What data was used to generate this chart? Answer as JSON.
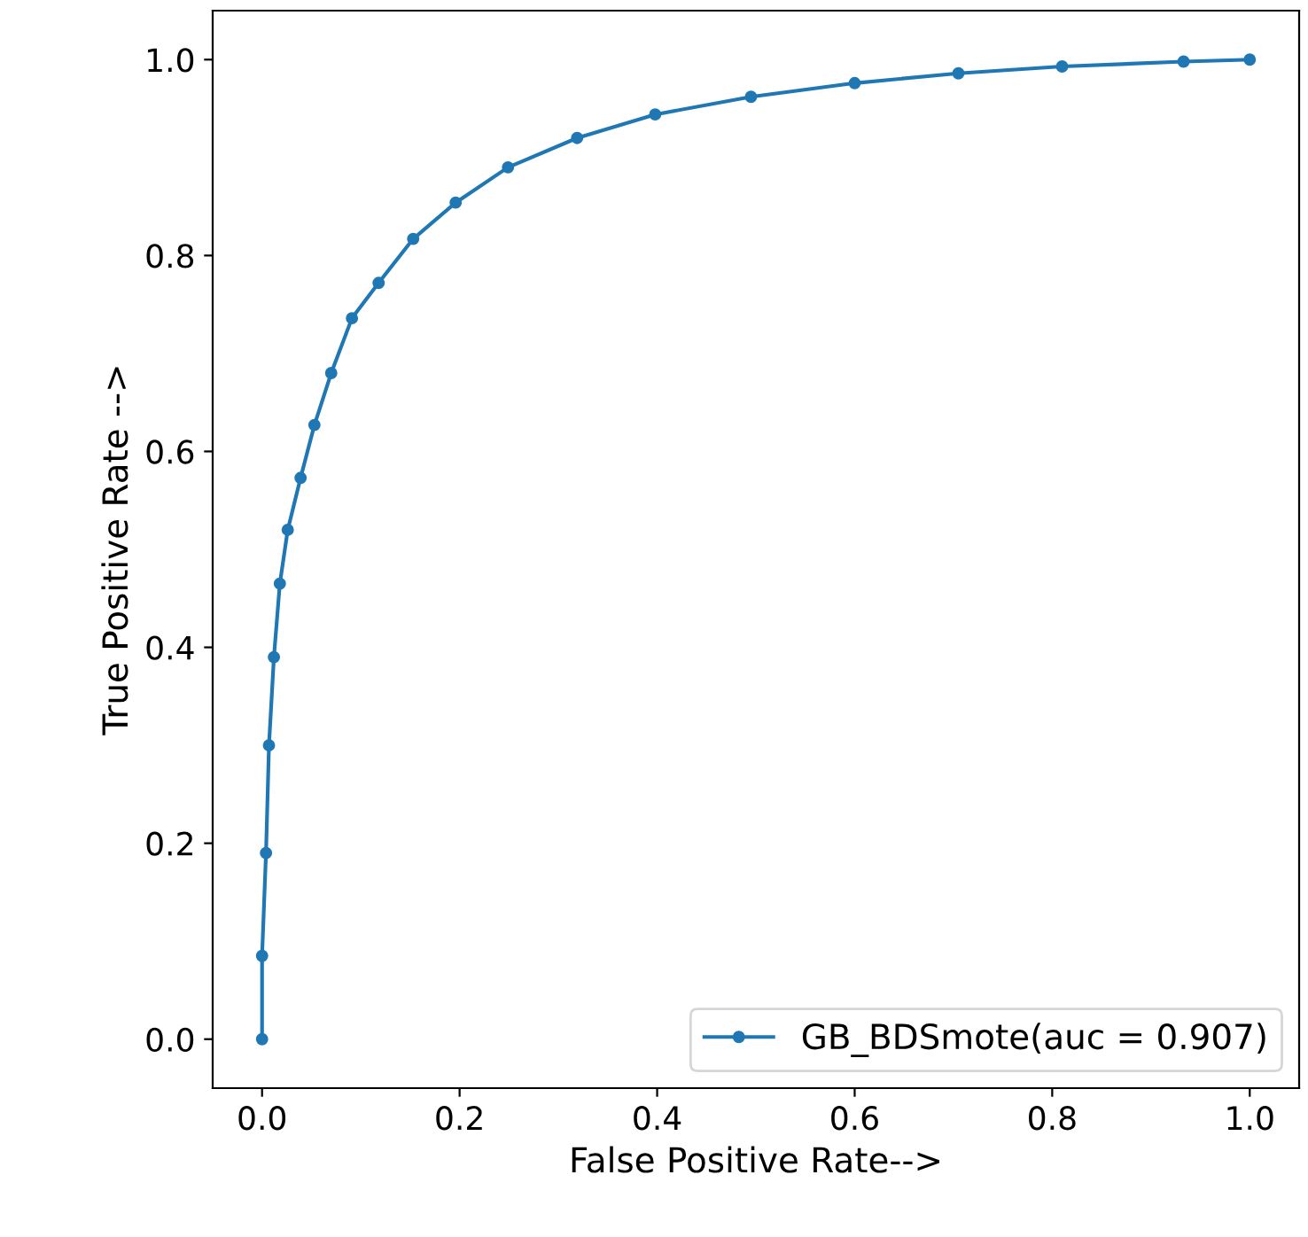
{
  "chart_data": {
    "type": "line",
    "xlabel": "False Positive Rate-->",
    "ylabel": "True Positive Rate -->",
    "series": [
      {
        "name": "GB_BDSmote(auc = 0.907)",
        "color": "#1f77b4",
        "x": [
          0,
          0,
          0.004,
          0.007,
          0.012,
          0.018,
          0.026,
          0.039,
          0.053,
          0.07,
          0.091,
          0.118,
          0.153,
          0.196,
          0.249,
          0.319,
          0.398,
          0.495,
          0.6,
          0.705,
          0.81,
          0.933,
          1.0
        ],
        "values": [
          0,
          0.085,
          0.19,
          0.3,
          0.39,
          0.465,
          0.52,
          0.573,
          0.627,
          0.68,
          0.736,
          0.772,
          0.817,
          0.854,
          0.89,
          0.92,
          0.944,
          0.962,
          0.976,
          0.986,
          0.993,
          0.998,
          1.0
        ]
      }
    ],
    "xlim": [
      -0.05,
      1.05
    ],
    "ylim": [
      -0.05,
      1.05
    ],
    "xticks": [
      {
        "value": 0,
        "label": "0.0"
      },
      0.2,
      0.4,
      0.6,
      0.8,
      {
        "value": 1,
        "label": "1.0"
      }
    ],
    "yticks": [
      {
        "value": 0,
        "label": "0.0"
      },
      0.2,
      0.4,
      0.6,
      0.8,
      {
        "value": 1,
        "label": "1.0"
      }
    ],
    "marker": "circle",
    "line_style": "solid",
    "legend": "bottom right",
    "grid": false
  }
}
